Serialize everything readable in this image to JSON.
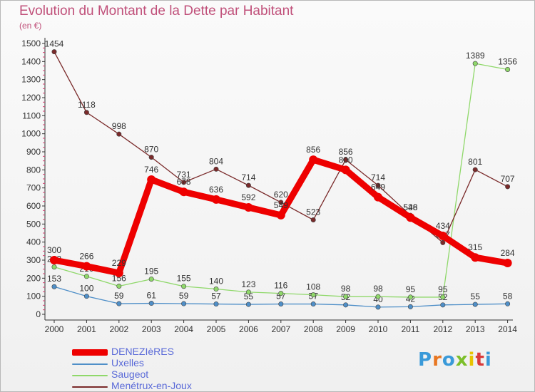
{
  "title": "Evolution du Montant de la Dette par Habitant",
  "unit_label": "(en €)",
  "logo": {
    "text": "Proxiti",
    "colors": [
      "#3a9ad9",
      "#e87722",
      "#3a9ad9",
      "#7cbf2a",
      "#e8c300",
      "#d93a3a",
      "#3a9ad9"
    ]
  },
  "chart_data": {
    "type": "line",
    "title": "Evolution du Montant de la Dette par Habitant",
    "ylabel": "(en €)",
    "xlabel": "",
    "x": [
      "2000",
      "2001",
      "2002",
      "2003",
      "2004",
      "2005",
      "2006",
      "2007",
      "2008",
      "2009",
      "2010",
      "2011",
      "2012",
      "2013",
      "2014"
    ],
    "ylim": [
      0,
      1500
    ],
    "yticks": [
      "0",
      "100",
      "200",
      "300",
      "400",
      "500",
      "600",
      "700",
      "800",
      "900",
      "1000",
      "1100",
      "1200",
      "1300",
      "1400",
      "1500"
    ],
    "grid": false,
    "legend_position": "bottom-left",
    "series": [
      {
        "name": "DENEZIèRES",
        "color": "#ee0000",
        "values": [
          300,
          266,
          229,
          746,
          678,
          636,
          592,
          549,
          856,
          800,
          649,
          536,
          434,
          315,
          284
        ],
        "labels": [
          "300",
          "266",
          "229",
          "746",
          "678",
          "636",
          "592",
          "549",
          "856",
          "800",
          "649",
          "536",
          "434",
          "315",
          "284"
        ]
      },
      {
        "name": "Uxelles",
        "color": "#4f8fc8",
        "values": [
          153,
          100,
          59,
          61,
          59,
          57,
          55,
          57,
          57,
          52,
          40,
          42,
          52,
          55,
          58
        ],
        "labels": [
          "153",
          "100",
          "59",
          "61",
          "59",
          "57",
          "55",
          "57",
          "57",
          "52",
          "40",
          "42",
          "52",
          "55",
          "58"
        ]
      },
      {
        "name": "Saugeot",
        "color": "#8fd86a",
        "values": [
          262,
          210,
          156,
          195,
          155,
          140,
          123,
          116,
          108,
          98,
          98,
          95,
          95,
          1389,
          1356
        ],
        "labels": [
          "262",
          "210",
          "156",
          "195",
          "155",
          "140",
          "123",
          "116",
          "108",
          "98",
          "98",
          "95",
          "95",
          "1389",
          "1356"
        ]
      },
      {
        "name": "Menétrux-en-Joux",
        "color": "#7a2a2a",
        "values": [
          1454,
          1118,
          998,
          870,
          731,
          804,
          714,
          620,
          523,
          856,
          714,
          548,
          397,
          801,
          707
        ],
        "labels": [
          "1454",
          "1118",
          "998",
          "870",
          "731",
          "804",
          "714",
          "620",
          "523",
          "856",
          "714",
          "548",
          "397",
          "801",
          "707"
        ]
      }
    ]
  }
}
